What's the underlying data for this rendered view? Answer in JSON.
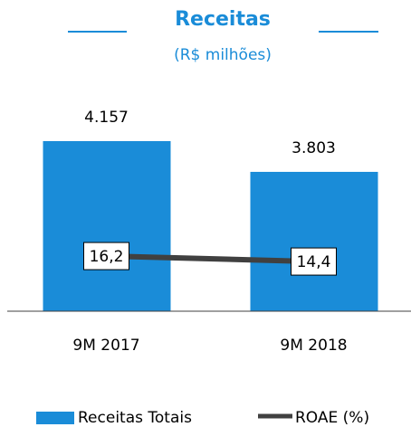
{
  "chart_data": {
    "type": "combo",
    "title": "Receitas",
    "subtitle": "(R$ milhões)",
    "categories": [
      "9M 2017",
      "9M 2018"
    ],
    "series": [
      {
        "name": "Receitas Totais",
        "type": "bar",
        "color": "#1a8cd8",
        "values": [
          4157,
          3803
        ],
        "value_labels": [
          "4.157",
          "3.803"
        ]
      },
      {
        "name": "ROAE (%)",
        "type": "line",
        "axis": "y2",
        "color": "#404040",
        "values": [
          16.2,
          14.4
        ],
        "value_labels": [
          "16,2",
          "14,4"
        ]
      }
    ],
    "ylim": [
      2200,
      4500
    ],
    "y2lim": [
      -2,
      64
    ],
    "legend": "bottom"
  }
}
